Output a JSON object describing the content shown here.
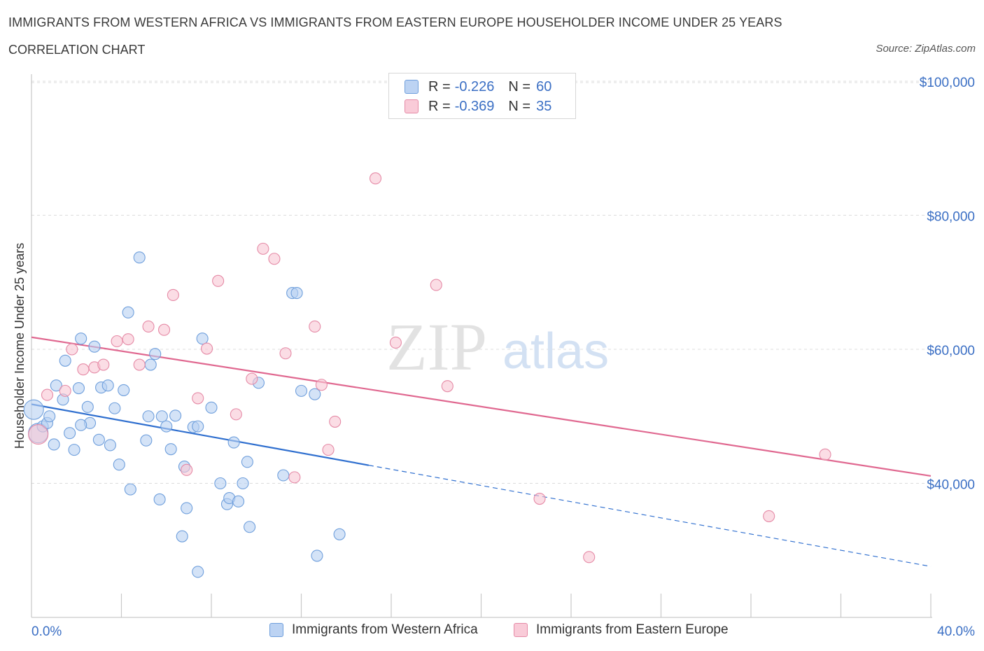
{
  "header": {
    "title": "IMMIGRANTS FROM WESTERN AFRICA VS IMMIGRANTS FROM EASTERN EUROPE HOUSEHOLDER INCOME UNDER 25 YEARS",
    "subtitle": "CORRELATION CHART",
    "source": "Source: ZipAtlas.com"
  },
  "watermark": {
    "zip": "ZIP",
    "atlas": "atlas"
  },
  "legend": {
    "rows": [
      {
        "r_label": "R =",
        "r_value": "-0.226",
        "n_label": "N =",
        "n_value": "60"
      },
      {
        "r_label": "R =",
        "r_value": "-0.369",
        "n_label": "N =",
        "n_value": "35"
      }
    ]
  },
  "bottom_legend": {
    "series_a": "Immigrants from Western Africa",
    "series_b": "Immigrants from Eastern Europe"
  },
  "colors": {
    "series_a_fill": "#b7d0f2",
    "series_a_stroke": "#6f9fdc",
    "series_a_line": "#2f6fcf",
    "series_b_fill": "#f8c6d4",
    "series_b_stroke": "#e58aa6",
    "series_b_line": "#e06890",
    "tick_text": "#3b6fc4"
  },
  "chart_data": {
    "type": "scatter",
    "title": "IMMIGRANTS FROM WESTERN AFRICA VS IMMIGRANTS FROM EASTERN EUROPE HOUSEHOLDER INCOME UNDER 25 YEARS",
    "subtitle": "CORRELATION CHART",
    "xlabel": "",
    "ylabel": "Householder Income Under 25 years",
    "xlim": [
      0,
      40
    ],
    "ylim": [
      20000,
      102000
    ],
    "x_tick_labels": [
      "0.0%",
      "40.0%"
    ],
    "y_ticks": [
      40000,
      60000,
      80000,
      100000
    ],
    "y_tick_labels": [
      "$40,000",
      "$60,000",
      "$80,000",
      "$100,000"
    ],
    "grid": true,
    "legend_position": "top-center",
    "series": [
      {
        "name": "Immigrants from Western Africa",
        "r": -0.226,
        "n": 60,
        "trend": {
          "x": [
            0,
            15
          ],
          "y": [
            51800,
            42700
          ],
          "dashed_extension_to_x": 40,
          "dashed_end_y": 27600
        },
        "points": [
          [
            0.1,
            51000
          ],
          [
            0.3,
            47500
          ],
          [
            0.5,
            48500
          ],
          [
            0.7,
            49000
          ],
          [
            0.8,
            50000
          ],
          [
            1.0,
            45800
          ],
          [
            1.1,
            54600
          ],
          [
            1.4,
            52500
          ],
          [
            1.5,
            58300
          ],
          [
            1.7,
            47500
          ],
          [
            1.9,
            45000
          ],
          [
            2.1,
            54200
          ],
          [
            2.2,
            61600
          ],
          [
            2.5,
            51400
          ],
          [
            2.6,
            49000
          ],
          [
            2.8,
            60400
          ],
          [
            3.0,
            46500
          ],
          [
            3.1,
            54300
          ],
          [
            3.5,
            45700
          ],
          [
            3.4,
            54600
          ],
          [
            3.7,
            51200
          ],
          [
            3.9,
            42800
          ],
          [
            4.1,
            53900
          ],
          [
            4.4,
            39100
          ],
          [
            4.3,
            65500
          ],
          [
            4.8,
            73700
          ],
          [
            5.1,
            46400
          ],
          [
            5.2,
            50000
          ],
          [
            5.3,
            57700
          ],
          [
            5.5,
            59300
          ],
          [
            5.7,
            37600
          ],
          [
            5.8,
            50000
          ],
          [
            6.0,
            48500
          ],
          [
            6.2,
            45100
          ],
          [
            6.4,
            50100
          ],
          [
            6.7,
            32100
          ],
          [
            6.8,
            42500
          ],
          [
            6.9,
            36300
          ],
          [
            7.2,
            48400
          ],
          [
            7.4,
            48500
          ],
          [
            7.6,
            61600
          ],
          [
            7.4,
            26800
          ],
          [
            8.0,
            51300
          ],
          [
            8.4,
            40000
          ],
          [
            8.7,
            36900
          ],
          [
            8.8,
            37800
          ],
          [
            9.0,
            46100
          ],
          [
            9.2,
            37300
          ],
          [
            9.4,
            40000
          ],
          [
            9.6,
            43200
          ],
          [
            9.7,
            33500
          ],
          [
            10.1,
            55000
          ],
          [
            11.2,
            41200
          ],
          [
            11.6,
            68400
          ],
          [
            11.8,
            68400
          ],
          [
            12.0,
            53800
          ],
          [
            12.6,
            53300
          ],
          [
            12.7,
            29200
          ],
          [
            13.7,
            32400
          ],
          [
            2.2,
            48700
          ]
        ]
      },
      {
        "name": "Immigrants from Eastern Europe",
        "r": -0.369,
        "n": 35,
        "trend": {
          "x": [
            0,
            40
          ],
          "y": [
            61800,
            41100
          ]
        },
        "points": [
          [
            0.3,
            47300
          ],
          [
            0.7,
            53200
          ],
          [
            1.5,
            53800
          ],
          [
            1.8,
            60000
          ],
          [
            2.3,
            57000
          ],
          [
            2.8,
            57300
          ],
          [
            3.2,
            57700
          ],
          [
            3.8,
            61200
          ],
          [
            4.3,
            61500
          ],
          [
            4.8,
            57700
          ],
          [
            5.2,
            63400
          ],
          [
            5.9,
            62900
          ],
          [
            6.3,
            68100
          ],
          [
            6.9,
            42000
          ],
          [
            7.4,
            52700
          ],
          [
            7.8,
            60100
          ],
          [
            8.3,
            70200
          ],
          [
            9.1,
            50300
          ],
          [
            9.8,
            55600
          ],
          [
            10.3,
            75000
          ],
          [
            10.8,
            73500
          ],
          [
            11.3,
            59400
          ],
          [
            11.7,
            40900
          ],
          [
            12.6,
            63400
          ],
          [
            12.9,
            54700
          ],
          [
            13.2,
            45000
          ],
          [
            13.5,
            49200
          ],
          [
            15.3,
            85500
          ],
          [
            16.2,
            61000
          ],
          [
            18.0,
            69600
          ],
          [
            18.5,
            54500
          ],
          [
            22.6,
            37700
          ],
          [
            24.8,
            29000
          ],
          [
            32.8,
            35100
          ],
          [
            35.3,
            44300
          ]
        ]
      }
    ]
  }
}
